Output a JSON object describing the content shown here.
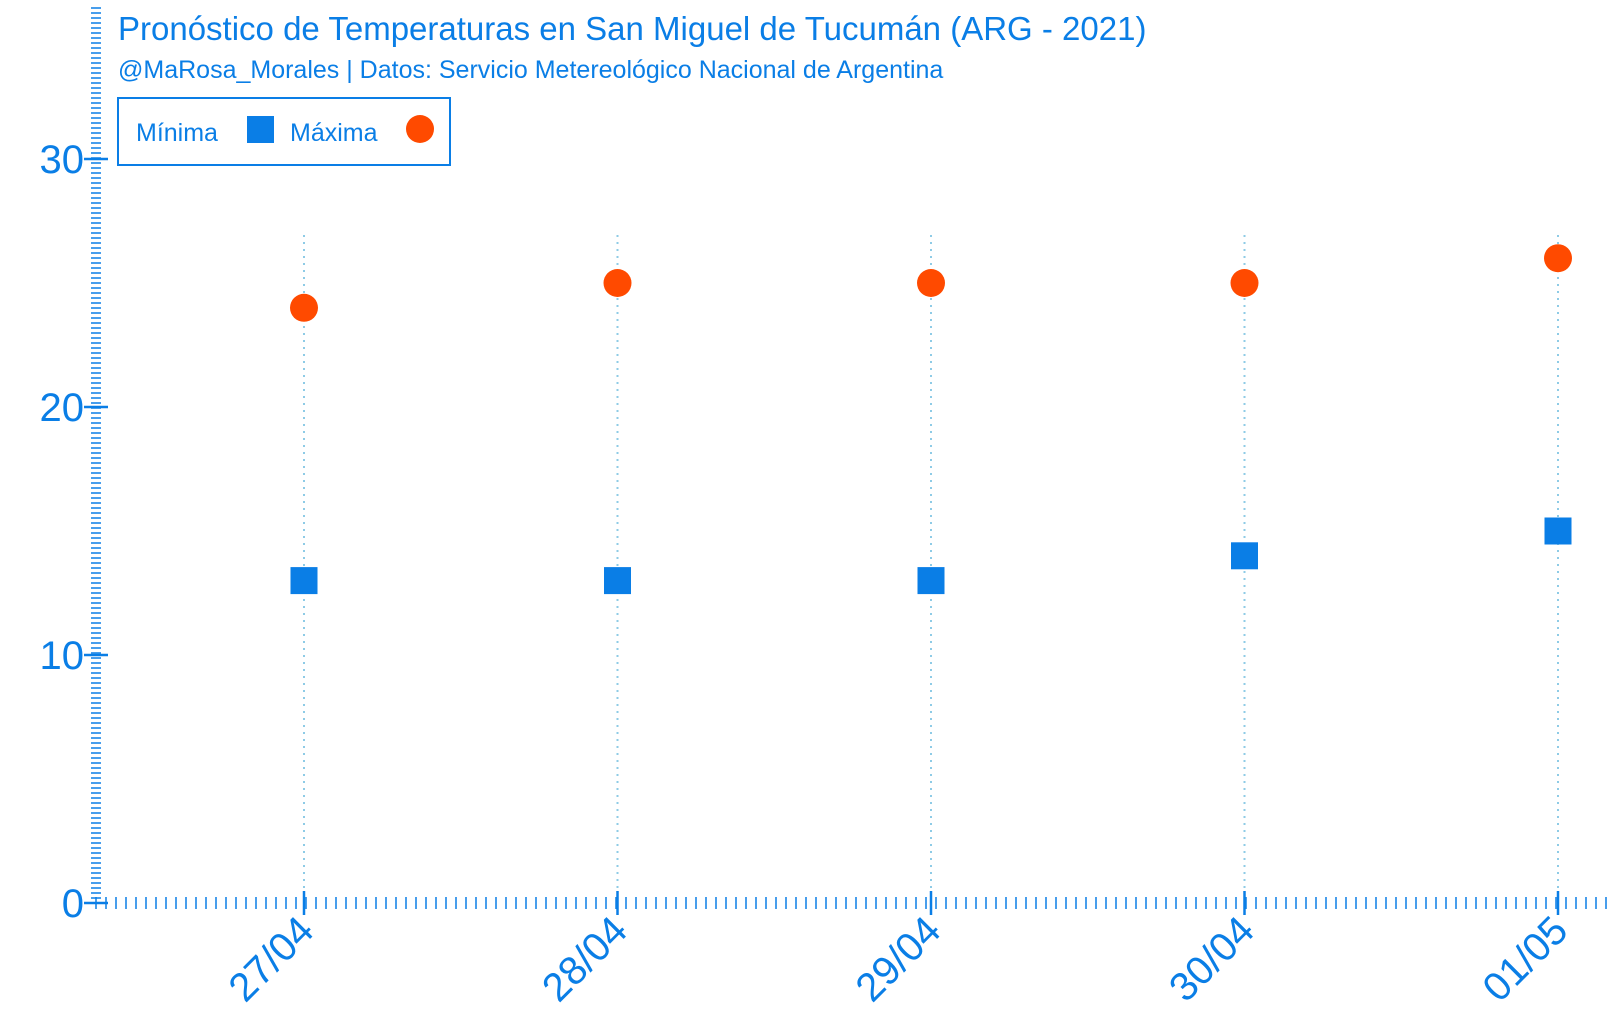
{
  "chart_data": {
    "type": "scatter",
    "title": "Pronóstico de Temperaturas en San Miguel de Tucumán (ARG - 2021)",
    "subtitle": "@MaRosa_Morales | Datos: Servicio Metereológico Nacional de Argentina",
    "xlabel": "",
    "ylabel": "",
    "categories": [
      "27/04",
      "28/04",
      "29/04",
      "30/04",
      "01/05"
    ],
    "ylim": [
      0,
      30
    ],
    "yticks": [
      "0",
      "10",
      "20",
      "30"
    ],
    "grid": "vertical dotted lines at each date",
    "legend_placement": "top-left",
    "series": [
      {
        "name": "Mínima",
        "marker": "square",
        "color": "#0a7ee6",
        "values": [
          13,
          13,
          13,
          14,
          15
        ]
      },
      {
        "name": "Máxima",
        "marker": "circle",
        "color": "#ff4a00",
        "values": [
          24,
          25,
          25,
          25,
          26
        ]
      }
    ]
  },
  "colors": {
    "axis": "#0a7ee6",
    "grid": "#8ecbe6",
    "minima": "#0a7ee6",
    "maxima": "#ff4a00"
  }
}
